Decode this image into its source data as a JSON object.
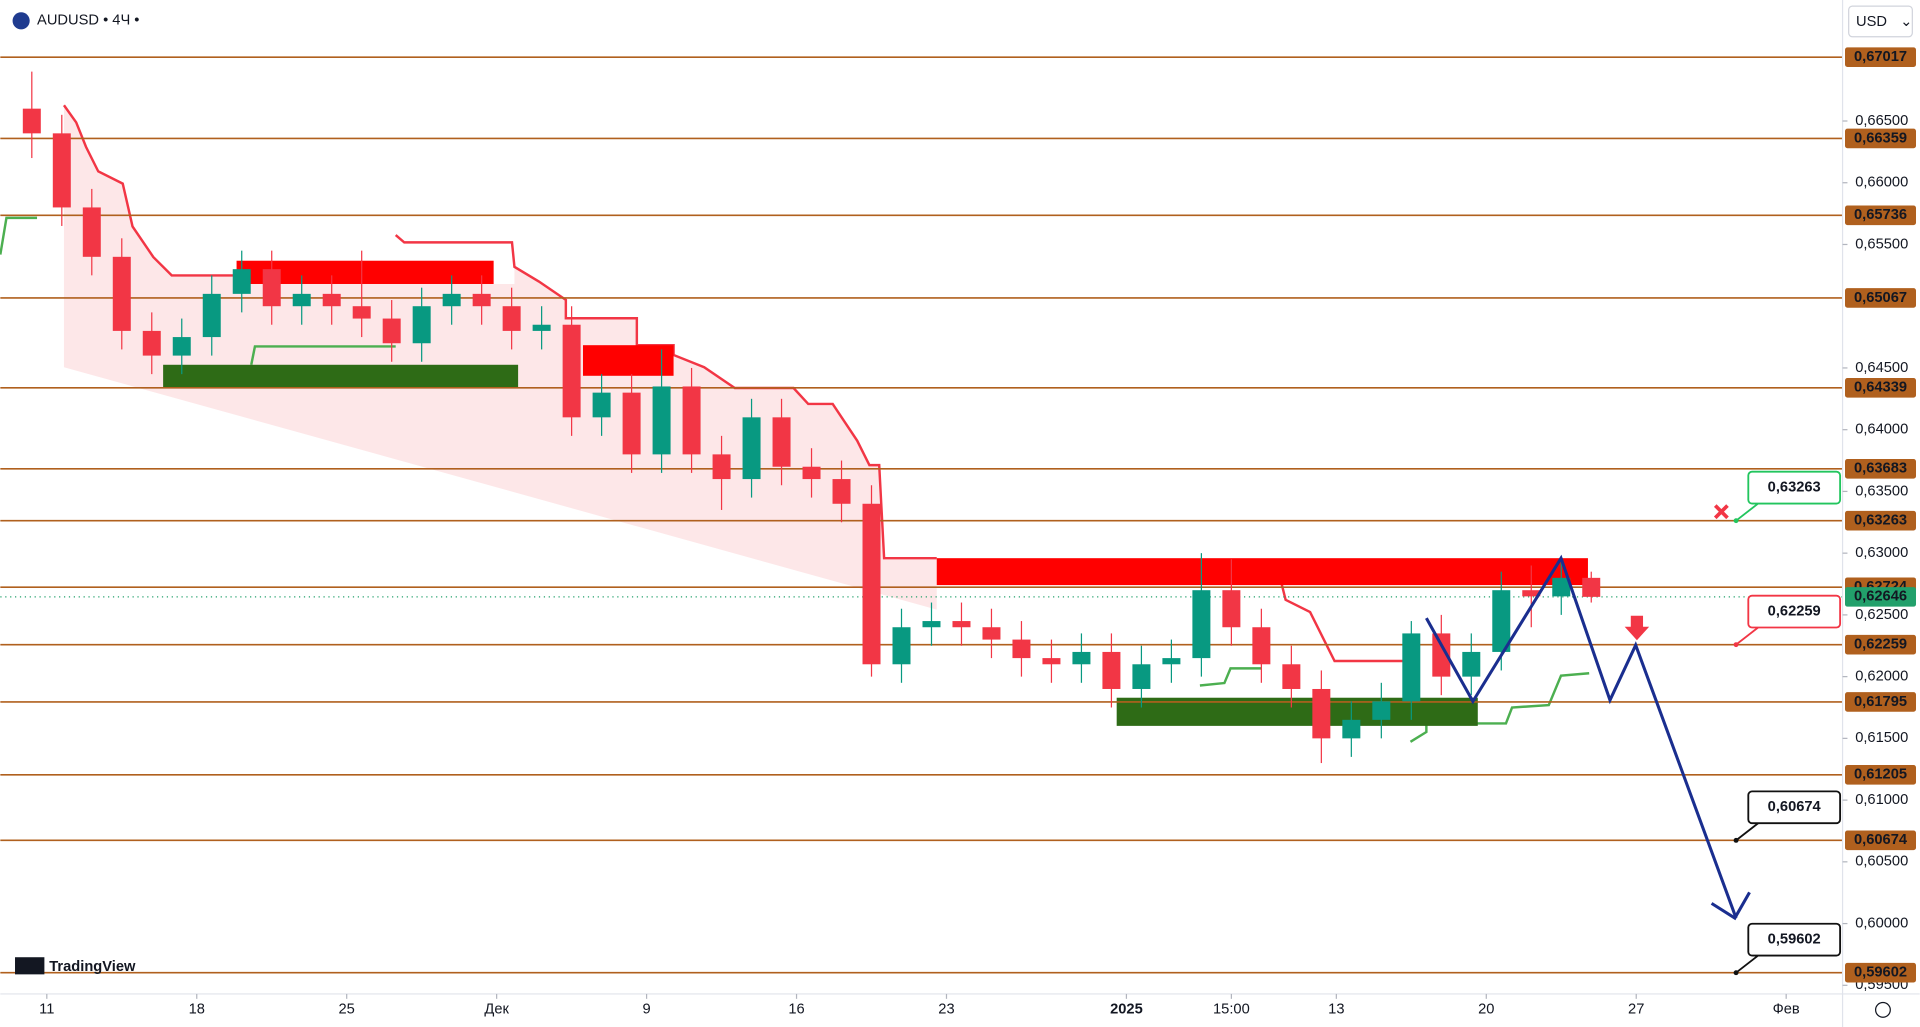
{
  "chart_data": {
    "type": "candlestick",
    "title": "AUDUSD • 4Ч •",
    "currency": "USD",
    "logo": "TradingView",
    "up_color": "#089981",
    "down_color": "#f23645",
    "level_color": "#b0601e",
    "grid": false,
    "x": [
      -0.5,
      0.5,
      1.5,
      2.5,
      3.5,
      4.5,
      5.5,
      6.5,
      7.5,
      8.5,
      9.5,
      10.5,
      11.5,
      12.5,
      13.5,
      14.5,
      15.5,
      16.5,
      17.5,
      18.5,
      19.5,
      20.5,
      21.5,
      22.5,
      23.5,
      24.5,
      25.5,
      26.5,
      27.5,
      28.5,
      29.5,
      30.5,
      31.5,
      32.5,
      33.5,
      34.5,
      35.5,
      36.5,
      37.5,
      38.5,
      39.5,
      40.5,
      41.5,
      42.5,
      43.5,
      44.5,
      45.5,
      46.5,
      47.5,
      48.5,
      49.5,
      50.5,
      51.5
    ],
    "open": [
      0.666,
      0.664,
      0.658,
      0.654,
      0.648,
      0.646,
      0.6475,
      0.651,
      0.653,
      0.65,
      0.651,
      0.65,
      0.649,
      0.647,
      0.65,
      0.651,
      0.65,
      0.648,
      0.6485,
      0.641,
      0.643,
      0.638,
      0.6435,
      0.638,
      0.636,
      0.641,
      0.637,
      0.636,
      0.634,
      0.621,
      0.624,
      0.6245,
      0.624,
      0.623,
      0.6215,
      0.621,
      0.622,
      0.619,
      0.621,
      0.6215,
      0.627,
      0.624,
      0.621,
      0.619,
      0.615,
      0.6165,
      0.618,
      0.6235,
      0.62,
      0.622,
      0.627,
      0.6265,
      0.628
    ],
    "high": [
      0.669,
      0.6655,
      0.6595,
      0.6555,
      0.6495,
      0.649,
      0.6525,
      0.6545,
      0.6545,
      0.6525,
      0.6525,
      0.6545,
      0.6505,
      0.6515,
      0.6525,
      0.6525,
      0.6515,
      0.65,
      0.65,
      0.6445,
      0.6445,
      0.6465,
      0.645,
      0.6395,
      0.6425,
      0.6425,
      0.6385,
      0.6375,
      0.6355,
      0.6255,
      0.626,
      0.626,
      0.6255,
      0.6245,
      0.623,
      0.6235,
      0.6235,
      0.6225,
      0.623,
      0.63,
      0.6295,
      0.6255,
      0.6225,
      0.6205,
      0.618,
      0.6195,
      0.6245,
      0.625,
      0.6235,
      0.6285,
      0.629,
      0.6295,
      0.6285
    ],
    "low": [
      0.662,
      0.6565,
      0.6525,
      0.6465,
      0.6445,
      0.6445,
      0.646,
      0.6495,
      0.6485,
      0.6485,
      0.6485,
      0.6475,
      0.6455,
      0.6455,
      0.6485,
      0.6485,
      0.6465,
      0.6465,
      0.6395,
      0.6395,
      0.6365,
      0.6365,
      0.6365,
      0.6335,
      0.6345,
      0.6355,
      0.6345,
      0.6325,
      0.62,
      0.6195,
      0.6225,
      0.6225,
      0.6215,
      0.62,
      0.6195,
      0.6195,
      0.6175,
      0.6175,
      0.6195,
      0.62,
      0.6225,
      0.6195,
      0.6175,
      0.613,
      0.6135,
      0.615,
      0.6165,
      0.6185,
      0.6185,
      0.6205,
      0.624,
      0.625,
      0.626
    ],
    "close": [
      0.664,
      0.658,
      0.654,
      0.648,
      0.646,
      0.6475,
      0.651,
      0.653,
      0.65,
      0.651,
      0.65,
      0.649,
      0.647,
      0.65,
      0.651,
      0.65,
      0.648,
      0.6485,
      0.641,
      0.643,
      0.638,
      0.6435,
      0.638,
      0.636,
      0.641,
      0.637,
      0.636,
      0.634,
      0.621,
      0.624,
      0.6245,
      0.624,
      0.623,
      0.6215,
      0.621,
      0.622,
      0.619,
      0.621,
      0.6215,
      0.627,
      0.624,
      0.621,
      0.619,
      0.615,
      0.6165,
      0.618,
      0.6235,
      0.62,
      0.622,
      0.627,
      0.6265,
      0.628,
      0.62646
    ],
    "xlim": [
      -1.55,
      59.88
    ],
    "ylim": [
      0.5943,
      0.6748
    ],
    "xticks": [
      {
        "value": 0,
        "label": "11"
      },
      {
        "value": 5,
        "label": "18"
      },
      {
        "value": 10,
        "label": "25"
      },
      {
        "value": 15,
        "label": "Дек"
      },
      {
        "value": 20,
        "label": "9"
      },
      {
        "value": 25,
        "label": "16"
      },
      {
        "value": 30,
        "label": "23"
      },
      {
        "value": 36,
        "label": "2025"
      },
      {
        "value": 39.5,
        "label": "15:00"
      },
      {
        "value": 43,
        "label": "13"
      },
      {
        "value": 48,
        "label": "20"
      },
      {
        "value": 53,
        "label": "27"
      },
      {
        "value": 58,
        "label": "Фев"
      }
    ],
    "yticks": [
      {
        "value": 0.665,
        "label": "0,66500"
      },
      {
        "value": 0.66,
        "label": "0,66000"
      },
      {
        "value": 0.655,
        "label": "0,65500"
      },
      {
        "value": 0.645,
        "label": "0,64500"
      },
      {
        "value": 0.64,
        "label": "0,64000"
      },
      {
        "value": 0.635,
        "label": "0,63500"
      },
      {
        "value": 0.63,
        "label": "0,63000"
      },
      {
        "value": 0.625,
        "label": "0,62500"
      },
      {
        "value": 0.62,
        "label": "0,62000"
      },
      {
        "value": 0.615,
        "label": "0,61500"
      },
      {
        "value": 0.61,
        "label": "0,61000"
      },
      {
        "value": 0.605,
        "label": "0,60500"
      },
      {
        "value": 0.6,
        "label": "0,60000"
      },
      {
        "value": 0.595,
        "label": "0,59500"
      }
    ],
    "levels": [
      {
        "value": 0.67017,
        "label": "0,67017"
      },
      {
        "value": 0.66359,
        "label": "0,66359"
      },
      {
        "value": 0.65736,
        "label": "0,65736"
      },
      {
        "value": 0.65067,
        "label": "0,65067"
      },
      {
        "value": 0.64339,
        "label": "0,64339"
      },
      {
        "value": 0.63683,
        "label": "0,63683"
      },
      {
        "value": 0.63263,
        "label": "0,63263"
      },
      {
        "value": 0.62724,
        "label": "0,62724"
      },
      {
        "value": 0.62259,
        "label": "0,62259"
      },
      {
        "value": 0.61795,
        "label": "0,61795"
      },
      {
        "value": 0.61205,
        "label": "0,61205"
      },
      {
        "value": 0.60674,
        "label": "0,60674"
      },
      {
        "value": 0.59602,
        "label": "0,59602"
      }
    ],
    "last_price": {
      "value": 0.62646,
      "label": "0,62646",
      "color": "#22a06b"
    },
    "callouts": [
      {
        "value": 0.63263,
        "label": "0,63263",
        "color": "#22c55e"
      },
      {
        "value": 0.62259,
        "label": "0,62259",
        "color": "#f23645"
      },
      {
        "value": 0.60674,
        "label": "0,60674",
        "color": "#111111"
      },
      {
        "value": 0.59602,
        "label": "0,59602",
        "color": "#111111"
      }
    ]
  }
}
